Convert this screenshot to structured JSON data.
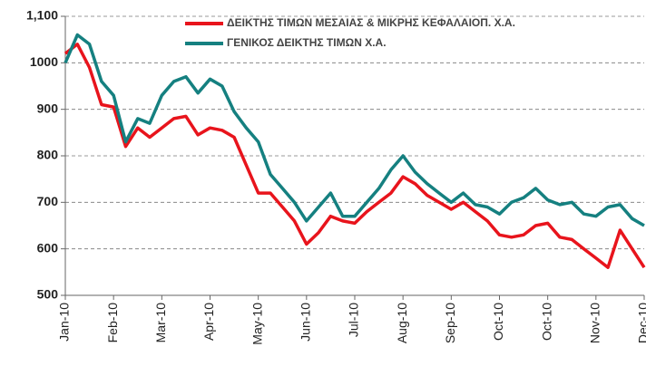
{
  "chart_data": {
    "type": "line",
    "x": [
      0,
      0.25,
      0.5,
      0.75,
      1,
      1.25,
      1.5,
      1.75,
      2,
      2.25,
      2.5,
      2.75,
      3,
      3.25,
      3.5,
      3.75,
      4,
      4.25,
      4.5,
      4.75,
      5,
      5.25,
      5.5,
      5.75,
      6,
      6.25,
      6.5,
      6.75,
      7,
      7.25,
      7.5,
      7.75,
      8,
      8.25,
      8.5,
      8.75,
      9,
      9.25,
      9.5,
      9.75,
      10,
      10.25,
      10.5,
      10.75,
      11,
      11.25,
      11.5,
      11.75,
      12
    ],
    "series": [
      {
        "name": "ΔΕΙΚΤΗΣ ΤΙΜΩΝ ΜΕΣΑΙΑΣ & ΜΙΚΡΗΣ ΚΕΦΑΛΑΙΟΠ.  Χ.Α.",
        "color": "#e8141c",
        "values": [
          1020,
          1040,
          990,
          910,
          905,
          820,
          860,
          840,
          860,
          880,
          885,
          845,
          860,
          855,
          840,
          780,
          720,
          720,
          690,
          660,
          610,
          635,
          670,
          660,
          655,
          680,
          700,
          720,
          755,
          740,
          715,
          700,
          685,
          700,
          680,
          660,
          630,
          625,
          630,
          650,
          655,
          625,
          620,
          600,
          580,
          560,
          640,
          600,
          560
        ]
      },
      {
        "name": "ΓΕΝΙΚΟΣ ΔΕΙΚΤΗΣ ΤΙΜΩΝ Χ.Α.",
        "color": "#158080",
        "values": [
          1000,
          1060,
          1040,
          960,
          930,
          830,
          880,
          870,
          930,
          960,
          970,
          935,
          965,
          950,
          895,
          860,
          830,
          760,
          730,
          700,
          660,
          690,
          720,
          670,
          670,
          700,
          730,
          770,
          800,
          765,
          740,
          720,
          700,
          720,
          695,
          690,
          675,
          700,
          710,
          730,
          705,
          695,
          700,
          675,
          670,
          690,
          695,
          665,
          650
        ]
      }
    ],
    "xlim": [
      0,
      12
    ],
    "xticks": [
      {
        "value": 0,
        "label": "Jan-10"
      },
      {
        "value": 1,
        "label": "Feb-10"
      },
      {
        "value": 2,
        "label": "Mar-10"
      },
      {
        "value": 3,
        "label": "Apr-10"
      },
      {
        "value": 4,
        "label": "May-10"
      },
      {
        "value": 5,
        "label": "Jun-10"
      },
      {
        "value": 6,
        "label": "Jul-10"
      },
      {
        "value": 7,
        "label": "Aug-10"
      },
      {
        "value": 8,
        "label": "Sep-10"
      },
      {
        "value": 9,
        "label": "Oct-10"
      },
      {
        "value": 10,
        "label": "Oct-10"
      },
      {
        "value": 11,
        "label": "Nov-10"
      },
      {
        "value": 12,
        "label": "Dec-10"
      }
    ],
    "ylim": [
      500,
      1100
    ],
    "yticks": [
      500,
      600,
      700,
      800,
      900,
      1000,
      {
        "value": 1100,
        "label": "1,100"
      }
    ],
    "grid": true
  }
}
